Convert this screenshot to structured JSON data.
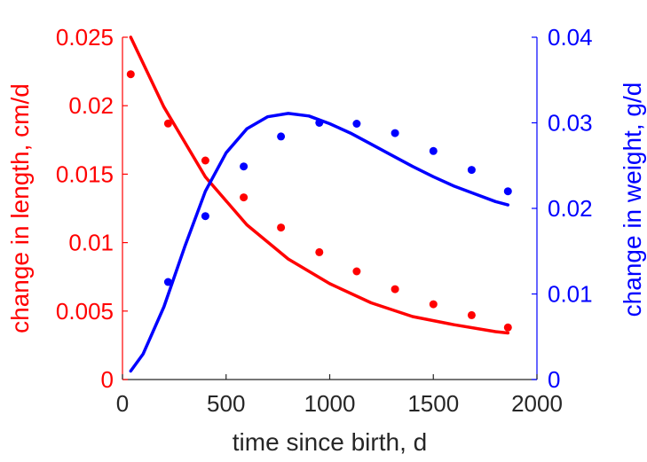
{
  "chart_data": {
    "type": "line",
    "xlabel": "time since birth, d",
    "ylabel_left": "change in length, cm/d",
    "ylabel_right": "change in weight, g/d",
    "xlim": [
      0,
      2000
    ],
    "ylim_left": [
      0,
      0.025
    ],
    "ylim_right": [
      0,
      0.04
    ],
    "x_ticks": [
      0,
      500,
      1000,
      1500,
      2000
    ],
    "y_left_ticks": [
      0,
      0.005,
      0.01,
      0.015,
      0.02,
      0.025
    ],
    "y_right_ticks": [
      0,
      0.01,
      0.02,
      0.03,
      0.04
    ],
    "x_tick_labels": [
      "0",
      "500",
      "1000",
      "1500",
      "2000"
    ],
    "y_left_tick_labels": [
      "0",
      "0.005",
      "0.01",
      "0.015",
      "0.02",
      "0.025"
    ],
    "y_right_tick_labels": [
      "0",
      "0.01",
      "0.02",
      "0.03",
      "0.04"
    ],
    "grid": false,
    "colors": {
      "length": "#ff0000",
      "weight": "#0000ff",
      "axis": "#262626"
    },
    "series": [
      {
        "axis": "left",
        "kind": "scatter",
        "color": "#ff0000",
        "x": [
          40,
          220,
          400,
          585,
          765,
          950,
          1130,
          1315,
          1500,
          1685,
          1860
        ],
        "y": [
          0.0223,
          0.0187,
          0.016,
          0.0133,
          0.0111,
          0.0093,
          0.0079,
          0.0066,
          0.0055,
          0.0047,
          0.0038
        ]
      },
      {
        "axis": "left",
        "kind": "line",
        "color": "#ff0000",
        "x": [
          40,
          200,
          400,
          600,
          800,
          1000,
          1200,
          1400,
          1600,
          1800,
          1860
        ],
        "y": [
          0.025,
          0.0199,
          0.0148,
          0.0113,
          0.0088,
          0.007,
          0.0056,
          0.0046,
          0.004,
          0.0035,
          0.0034
        ]
      },
      {
        "axis": "right",
        "kind": "scatter",
        "color": "#0000ff",
        "x": [
          220,
          400,
          585,
          765,
          950,
          1130,
          1315,
          1500,
          1685,
          1860
        ],
        "y": [
          0.0114,
          0.0191,
          0.0249,
          0.0284,
          0.03,
          0.0299,
          0.0288,
          0.0267,
          0.0245,
          0.022
        ]
      },
      {
        "axis": "right",
        "kind": "line",
        "color": "#0000ff",
        "x": [
          40,
          100,
          200,
          300,
          400,
          500,
          600,
          700,
          800,
          900,
          1000,
          1100,
          1200,
          1300,
          1400,
          1500,
          1600,
          1700,
          1800,
          1860
        ],
        "y": [
          0.001,
          0.003,
          0.0085,
          0.0155,
          0.022,
          0.0265,
          0.0293,
          0.0307,
          0.0311,
          0.0308,
          0.0299,
          0.0288,
          0.0275,
          0.0262,
          0.0249,
          0.0237,
          0.0226,
          0.0217,
          0.0208,
          0.0204
        ]
      }
    ]
  }
}
